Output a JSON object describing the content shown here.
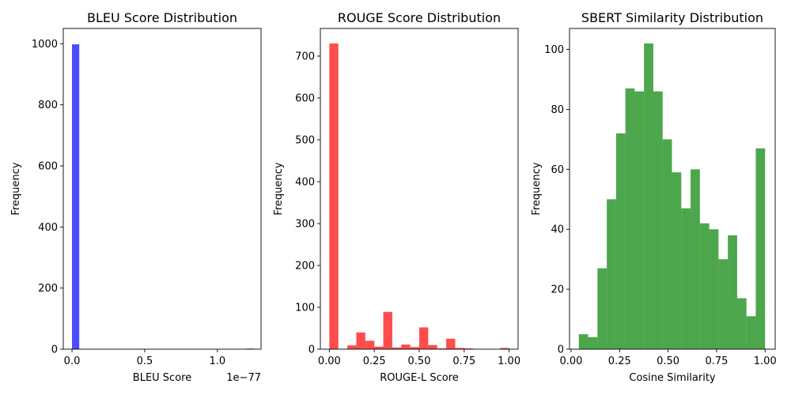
{
  "chart_data": [
    {
      "type": "bar",
      "title": "BLEU Score Distribution",
      "xlabel": "BLEU Score",
      "ylabel": "Frequency",
      "x_offset_label": "1e−77",
      "color": "#0000ff",
      "xlim": [
        -0.06,
        1.3
      ],
      "ylim": [
        0,
        1050
      ],
      "xticks": [
        0.0,
        0.5,
        1.0
      ],
      "xtick_labels": [
        "0.0",
        "0.5",
        "1.0"
      ],
      "yticks": [
        0,
        200,
        400,
        600,
        800,
        1000
      ],
      "ytick_labels": [
        "0",
        "200",
        "400",
        "600",
        "800",
        "1000"
      ],
      "bins": [
        {
          "x0": 0.0,
          "x1": 0.05,
          "value": 998
        },
        {
          "x0": 1.2,
          "x1": 1.25,
          "value": 2
        }
      ]
    },
    {
      "type": "bar",
      "title": "ROUGE Score Distribution",
      "xlabel": "ROUGE-L Score",
      "ylabel": "Frequency",
      "color": "#ff0000",
      "xlim": [
        -0.05,
        1.05
      ],
      "ylim": [
        0,
        766
      ],
      "xticks": [
        0.0,
        0.25,
        0.5,
        0.75,
        1.0
      ],
      "xtick_labels": [
        "0.00",
        "0.25",
        "0.50",
        "0.75",
        "1.00"
      ],
      "yticks": [
        0,
        100,
        200,
        300,
        400,
        500,
        600,
        700
      ],
      "ytick_labels": [
        "0",
        "100",
        "200",
        "300",
        "400",
        "500",
        "600",
        "700"
      ],
      "bins": [
        {
          "x0": 0.0,
          "x1": 0.05,
          "value": 730
        },
        {
          "x0": 0.05,
          "x1": 0.1,
          "value": 0
        },
        {
          "x0": 0.1,
          "x1": 0.15,
          "value": 9
        },
        {
          "x0": 0.15,
          "x1": 0.2,
          "value": 40
        },
        {
          "x0": 0.2,
          "x1": 0.25,
          "value": 20
        },
        {
          "x0": 0.25,
          "x1": 0.3,
          "value": 6
        },
        {
          "x0": 0.3,
          "x1": 0.35,
          "value": 89
        },
        {
          "x0": 0.35,
          "x1": 0.4,
          "value": 4
        },
        {
          "x0": 0.4,
          "x1": 0.45,
          "value": 11
        },
        {
          "x0": 0.45,
          "x1": 0.5,
          "value": 5
        },
        {
          "x0": 0.5,
          "x1": 0.55,
          "value": 52
        },
        {
          "x0": 0.55,
          "x1": 0.6,
          "value": 10
        },
        {
          "x0": 0.6,
          "x1": 0.65,
          "value": 2
        },
        {
          "x0": 0.65,
          "x1": 0.7,
          "value": 25
        },
        {
          "x0": 0.7,
          "x1": 0.75,
          "value": 3
        },
        {
          "x0": 0.75,
          "x1": 0.8,
          "value": 2
        },
        {
          "x0": 0.8,
          "x1": 0.85,
          "value": 0
        },
        {
          "x0": 0.85,
          "x1": 0.9,
          "value": 0
        },
        {
          "x0": 0.9,
          "x1": 0.95,
          "value": 0
        },
        {
          "x0": 0.95,
          "x1": 1.0,
          "value": 3
        }
      ]
    },
    {
      "type": "bar",
      "title": "SBERT Similarity Distribution",
      "xlabel": "Cosine Similarity",
      "ylabel": "Frequency",
      "color": "#008000",
      "xlim": [
        -0.008,
        1.052
      ],
      "ylim": [
        0,
        107
      ],
      "xticks": [
        0.0,
        0.25,
        0.5,
        0.75,
        1.0
      ],
      "xtick_labels": [
        "0.00",
        "0.25",
        "0.50",
        "0.75",
        "1.00"
      ],
      "yticks": [
        0,
        20,
        40,
        60,
        80,
        100
      ],
      "ytick_labels": [
        "0",
        "20",
        "40",
        "60",
        "80",
        "100"
      ],
      "bins": [
        {
          "x0": 0.04,
          "x1": 0.088,
          "value": 5
        },
        {
          "x0": 0.088,
          "x1": 0.136,
          "value": 4
        },
        {
          "x0": 0.136,
          "x1": 0.184,
          "value": 27
        },
        {
          "x0": 0.184,
          "x1": 0.232,
          "value": 50
        },
        {
          "x0": 0.232,
          "x1": 0.28,
          "value": 72
        },
        {
          "x0": 0.28,
          "x1": 0.328,
          "value": 87
        },
        {
          "x0": 0.328,
          "x1": 0.376,
          "value": 86
        },
        {
          "x0": 0.376,
          "x1": 0.424,
          "value": 102
        },
        {
          "x0": 0.424,
          "x1": 0.472,
          "value": 86
        },
        {
          "x0": 0.472,
          "x1": 0.52,
          "value": 70
        },
        {
          "x0": 0.52,
          "x1": 0.568,
          "value": 59
        },
        {
          "x0": 0.568,
          "x1": 0.616,
          "value": 47
        },
        {
          "x0": 0.616,
          "x1": 0.664,
          "value": 60
        },
        {
          "x0": 0.664,
          "x1": 0.712,
          "value": 42
        },
        {
          "x0": 0.712,
          "x1": 0.76,
          "value": 40
        },
        {
          "x0": 0.76,
          "x1": 0.808,
          "value": 30
        },
        {
          "x0": 0.808,
          "x1": 0.856,
          "value": 38
        },
        {
          "x0": 0.856,
          "x1": 0.904,
          "value": 17
        },
        {
          "x0": 0.904,
          "x1": 0.952,
          "value": 11
        },
        {
          "x0": 0.952,
          "x1": 1.0,
          "value": 67
        }
      ]
    }
  ]
}
